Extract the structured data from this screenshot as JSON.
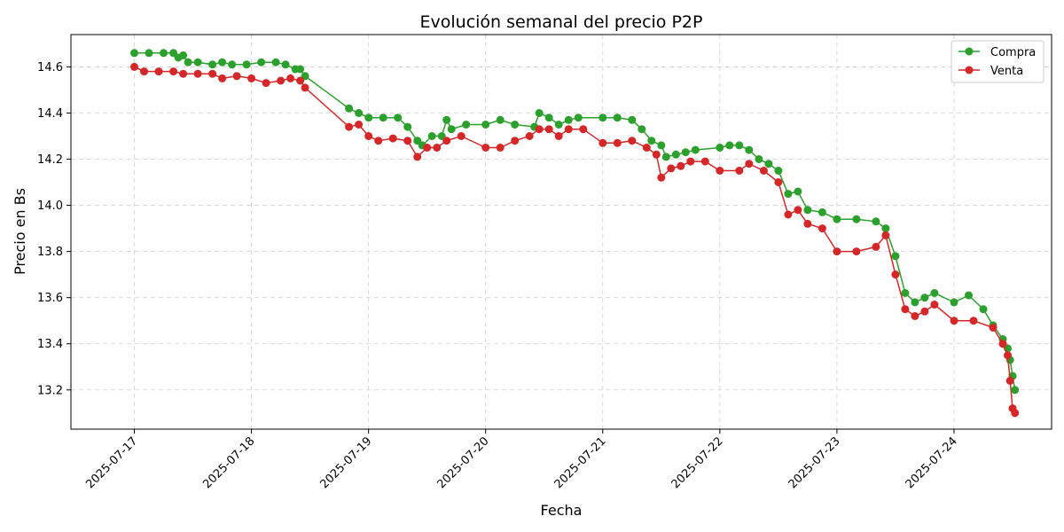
{
  "chart_data": {
    "type": "line",
    "title": "Evolución semanal del precio P2P",
    "xlabel": "Fecha",
    "ylabel": "Precio en Bs",
    "x_ticks": [
      "2025-07-17",
      "2025-07-18",
      "2025-07-19",
      "2025-07-20",
      "2025-07-21",
      "2025-07-22",
      "2025-07-23",
      "2025-07-24"
    ],
    "y_ticks": [
      13.2,
      13.4,
      13.6,
      13.8,
      14.0,
      14.2,
      14.4,
      14.6
    ],
    "xlim": [
      "2025-07-16T11:00",
      "2025-07-24T20:00"
    ],
    "ylim": [
      13.03,
      14.74
    ],
    "grid": true,
    "legend_position": "top-right",
    "series": [
      {
        "name": "Compra",
        "color": "#2ca02c",
        "points": [
          [
            "2025-07-17T00:00",
            14.66
          ],
          [
            "2025-07-17T03:00",
            14.66
          ],
          [
            "2025-07-17T06:00",
            14.66
          ],
          [
            "2025-07-17T08:00",
            14.66
          ],
          [
            "2025-07-17T09:00",
            14.64
          ],
          [
            "2025-07-17T10:00",
            14.65
          ],
          [
            "2025-07-17T11:00",
            14.62
          ],
          [
            "2025-07-17T13:00",
            14.62
          ],
          [
            "2025-07-17T16:00",
            14.61
          ],
          [
            "2025-07-17T18:00",
            14.62
          ],
          [
            "2025-07-17T20:00",
            14.61
          ],
          [
            "2025-07-17T23:00",
            14.61
          ],
          [
            "2025-07-18T02:00",
            14.62
          ],
          [
            "2025-07-18T05:00",
            14.62
          ],
          [
            "2025-07-18T07:00",
            14.61
          ],
          [
            "2025-07-18T09:00",
            14.59
          ],
          [
            "2025-07-18T10:00",
            14.59
          ],
          [
            "2025-07-18T11:00",
            14.56
          ],
          [
            "2025-07-18T20:00",
            14.42
          ],
          [
            "2025-07-18T22:00",
            14.4
          ],
          [
            "2025-07-19T00:00",
            14.38
          ],
          [
            "2025-07-19T03:00",
            14.38
          ],
          [
            "2025-07-19T06:00",
            14.38
          ],
          [
            "2025-07-19T08:00",
            14.34
          ],
          [
            "2025-07-19T10:00",
            14.28
          ],
          [
            "2025-07-19T11:00",
            14.26
          ],
          [
            "2025-07-19T13:00",
            14.3
          ],
          [
            "2025-07-19T15:00",
            14.3
          ],
          [
            "2025-07-19T16:00",
            14.37
          ],
          [
            "2025-07-19T17:00",
            14.33
          ],
          [
            "2025-07-19T20:00",
            14.35
          ],
          [
            "2025-07-20T00:00",
            14.35
          ],
          [
            "2025-07-20T03:00",
            14.37
          ],
          [
            "2025-07-20T06:00",
            14.35
          ],
          [
            "2025-07-20T10:00",
            14.34
          ],
          [
            "2025-07-20T11:00",
            14.4
          ],
          [
            "2025-07-20T13:00",
            14.38
          ],
          [
            "2025-07-20T15:00",
            14.35
          ],
          [
            "2025-07-20T17:00",
            14.37
          ],
          [
            "2025-07-20T19:00",
            14.38
          ],
          [
            "2025-07-21T00:00",
            14.38
          ],
          [
            "2025-07-21T03:00",
            14.38
          ],
          [
            "2025-07-21T06:00",
            14.37
          ],
          [
            "2025-07-21T08:00",
            14.33
          ],
          [
            "2025-07-21T10:00",
            14.28
          ],
          [
            "2025-07-21T12:00",
            14.26
          ],
          [
            "2025-07-21T13:00",
            14.21
          ],
          [
            "2025-07-21T15:00",
            14.22
          ],
          [
            "2025-07-21T17:00",
            14.23
          ],
          [
            "2025-07-21T19:00",
            14.24
          ],
          [
            "2025-07-22T00:00",
            14.25
          ],
          [
            "2025-07-22T02:00",
            14.26
          ],
          [
            "2025-07-22T04:00",
            14.26
          ],
          [
            "2025-07-22T06:00",
            14.24
          ],
          [
            "2025-07-22T08:00",
            14.2
          ],
          [
            "2025-07-22T10:00",
            14.18
          ],
          [
            "2025-07-22T12:00",
            14.15
          ],
          [
            "2025-07-22T14:00",
            14.05
          ],
          [
            "2025-07-22T16:00",
            14.06
          ],
          [
            "2025-07-22T18:00",
            13.98
          ],
          [
            "2025-07-22T21:00",
            13.97
          ],
          [
            "2025-07-23T00:00",
            13.94
          ],
          [
            "2025-07-23T04:00",
            13.94
          ],
          [
            "2025-07-23T08:00",
            13.93
          ],
          [
            "2025-07-23T10:00",
            13.9
          ],
          [
            "2025-07-23T12:00",
            13.78
          ],
          [
            "2025-07-23T14:00",
            13.62
          ],
          [
            "2025-07-23T16:00",
            13.58
          ],
          [
            "2025-07-23T18:00",
            13.6
          ],
          [
            "2025-07-23T20:00",
            13.62
          ],
          [
            "2025-07-24T00:00",
            13.58
          ],
          [
            "2025-07-24T03:00",
            13.61
          ],
          [
            "2025-07-24T06:00",
            13.55
          ],
          [
            "2025-07-24T08:00",
            13.48
          ],
          [
            "2025-07-24T10:00",
            13.42
          ],
          [
            "2025-07-24T11:00",
            13.38
          ],
          [
            "2025-07-24T11:30",
            13.33
          ],
          [
            "2025-07-24T12:00",
            13.26
          ],
          [
            "2025-07-24T12:30",
            13.2
          ]
        ]
      },
      {
        "name": "Venta",
        "color": "#d62728",
        "points": [
          [
            "2025-07-17T00:00",
            14.6
          ],
          [
            "2025-07-17T02:00",
            14.58
          ],
          [
            "2025-07-17T05:00",
            14.58
          ],
          [
            "2025-07-17T08:00",
            14.58
          ],
          [
            "2025-07-17T10:00",
            14.57
          ],
          [
            "2025-07-17T13:00",
            14.57
          ],
          [
            "2025-07-17T16:00",
            14.57
          ],
          [
            "2025-07-17T18:00",
            14.55
          ],
          [
            "2025-07-17T21:00",
            14.56
          ],
          [
            "2025-07-18T00:00",
            14.55
          ],
          [
            "2025-07-18T03:00",
            14.53
          ],
          [
            "2025-07-18T06:00",
            14.54
          ],
          [
            "2025-07-18T08:00",
            14.55
          ],
          [
            "2025-07-18T10:00",
            14.54
          ],
          [
            "2025-07-18T11:00",
            14.51
          ],
          [
            "2025-07-18T20:00",
            14.34
          ],
          [
            "2025-07-18T22:00",
            14.35
          ],
          [
            "2025-07-19T00:00",
            14.3
          ],
          [
            "2025-07-19T02:00",
            14.28
          ],
          [
            "2025-07-19T05:00",
            14.29
          ],
          [
            "2025-07-19T08:00",
            14.28
          ],
          [
            "2025-07-19T10:00",
            14.21
          ],
          [
            "2025-07-19T12:00",
            14.25
          ],
          [
            "2025-07-19T14:00",
            14.25
          ],
          [
            "2025-07-19T16:00",
            14.28
          ],
          [
            "2025-07-19T19:00",
            14.3
          ],
          [
            "2025-07-20T00:00",
            14.25
          ],
          [
            "2025-07-20T03:00",
            14.25
          ],
          [
            "2025-07-20T06:00",
            14.28
          ],
          [
            "2025-07-20T09:00",
            14.3
          ],
          [
            "2025-07-20T11:00",
            14.33
          ],
          [
            "2025-07-20T13:00",
            14.33
          ],
          [
            "2025-07-20T15:00",
            14.3
          ],
          [
            "2025-07-20T17:00",
            14.33
          ],
          [
            "2025-07-20T20:00",
            14.33
          ],
          [
            "2025-07-21T00:00",
            14.27
          ],
          [
            "2025-07-21T03:00",
            14.27
          ],
          [
            "2025-07-21T06:00",
            14.28
          ],
          [
            "2025-07-21T09:00",
            14.25
          ],
          [
            "2025-07-21T11:00",
            14.22
          ],
          [
            "2025-07-21T12:00",
            14.12
          ],
          [
            "2025-07-21T14:00",
            14.16
          ],
          [
            "2025-07-21T16:00",
            14.17
          ],
          [
            "2025-07-21T18:00",
            14.19
          ],
          [
            "2025-07-21T21:00",
            14.19
          ],
          [
            "2025-07-22T00:00",
            14.15
          ],
          [
            "2025-07-22T04:00",
            14.15
          ],
          [
            "2025-07-22T06:00",
            14.18
          ],
          [
            "2025-07-22T09:00",
            14.15
          ],
          [
            "2025-07-22T12:00",
            14.1
          ],
          [
            "2025-07-22T14:00",
            13.96
          ],
          [
            "2025-07-22T16:00",
            13.98
          ],
          [
            "2025-07-22T18:00",
            13.92
          ],
          [
            "2025-07-22T21:00",
            13.9
          ],
          [
            "2025-07-23T00:00",
            13.8
          ],
          [
            "2025-07-23T04:00",
            13.8
          ],
          [
            "2025-07-23T08:00",
            13.82
          ],
          [
            "2025-07-23T10:00",
            13.87
          ],
          [
            "2025-07-23T12:00",
            13.7
          ],
          [
            "2025-07-23T14:00",
            13.55
          ],
          [
            "2025-07-23T16:00",
            13.52
          ],
          [
            "2025-07-23T18:00",
            13.54
          ],
          [
            "2025-07-23T20:00",
            13.57
          ],
          [
            "2025-07-24T00:00",
            13.5
          ],
          [
            "2025-07-24T04:00",
            13.5
          ],
          [
            "2025-07-24T08:00",
            13.47
          ],
          [
            "2025-07-24T10:00",
            13.4
          ],
          [
            "2025-07-24T11:00",
            13.35
          ],
          [
            "2025-07-24T11:30",
            13.24
          ],
          [
            "2025-07-24T12:00",
            13.12
          ],
          [
            "2025-07-24T12:30",
            13.1
          ]
        ]
      }
    ]
  }
}
